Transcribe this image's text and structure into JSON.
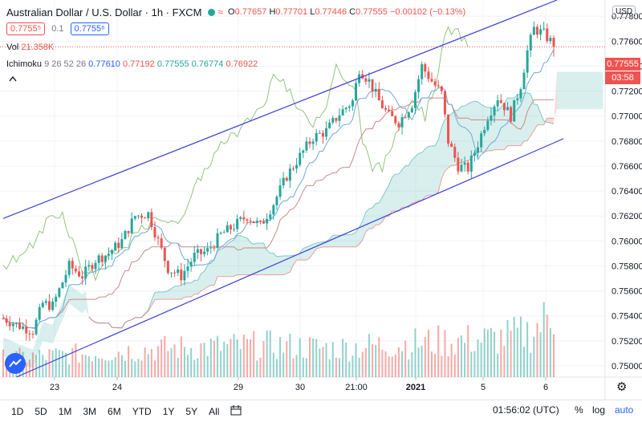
{
  "header": {
    "title": "Australian Dollar / U.S. Dollar · 1h · FXCM",
    "wave_icon": "≈",
    "open_label": "O",
    "open": "0.77657",
    "high_label": "H",
    "high": "0.77701",
    "low_label": "L",
    "low": "0.77446",
    "close_label": "C",
    "close": "0.77555",
    "change": "−0.00102 (−0.13%)"
  },
  "trade": {
    "sell": "0.7755⁵",
    "spread": "0.1",
    "buy": "0.7755⁶"
  },
  "volume_legend": {
    "name": "Vol",
    "value": "21.358K"
  },
  "ichimoku_legend": {
    "name": "Ichimoku",
    "params": "9 26 52 26",
    "v1": "0.77610",
    "v2": "0.77192",
    "v3": "0.77555",
    "v4": "0.76774",
    "v5": "0.76922"
  },
  "currency": "USD",
  "price_label": {
    "value": "0.77555",
    "countdown": "03:58"
  },
  "toolbar": {
    "timeframes": [
      "1D",
      "5D",
      "1M",
      "3M",
      "6M",
      "YTD",
      "1Y",
      "5Y",
      "All"
    ],
    "clock": "01:56:02 (UTC)",
    "percent": "%",
    "log": "log",
    "auto": "auto"
  },
  "colors": {
    "up": "#26a69a",
    "down": "#ef5350",
    "channel": "#3f3fd6",
    "kijun": "#c98a8a",
    "tenkan": "#6fa8dc",
    "chikou": "#93c47d"
  },
  "chart_data": {
    "type": "candlestick",
    "symbol": "AUDUSD",
    "interval": "1h",
    "y_axis": {
      "side": "right",
      "ticks": [
        "0.77800",
        "0.77600",
        "0.77400",
        "0.77200",
        "0.77000",
        "0.76800",
        "0.76600",
        "0.76400",
        "0.76200",
        "0.76000",
        "0.75800",
        "0.75600",
        "0.75400",
        "0.75200",
        "0.75000"
      ],
      "range": [
        0.7491,
        0.7793
      ]
    },
    "x_axis": {
      "labels": [
        "23",
        "24",
        "29",
        "30",
        "21:00",
        "2021",
        "5",
        "6"
      ],
      "label_x": [
        68,
        146,
        297,
        374,
        444,
        518,
        602,
        680
      ]
    },
    "anchors": [
      [
        0,
        0.7538
      ],
      [
        5,
        0.7532
      ],
      [
        9,
        0.7528
      ],
      [
        12,
        0.755
      ],
      [
        15,
        0.7548
      ],
      [
        20,
        0.758
      ],
      [
        24,
        0.7572
      ],
      [
        28,
        0.7585
      ],
      [
        32,
        0.759
      ],
      [
        36,
        0.76
      ],
      [
        40,
        0.762
      ],
      [
        44,
        0.7622
      ],
      [
        47,
        0.76
      ],
      [
        50,
        0.7578
      ],
      [
        54,
        0.7572
      ],
      [
        58,
        0.7588
      ],
      [
        62,
        0.7592
      ],
      [
        66,
        0.7605
      ],
      [
        70,
        0.7612
      ],
      [
        74,
        0.762
      ],
      [
        78,
        0.7612
      ],
      [
        82,
        0.763
      ],
      [
        86,
        0.7652
      ],
      [
        90,
        0.7668
      ],
      [
        94,
        0.7683
      ],
      [
        98,
        0.7688
      ],
      [
        102,
        0.7702
      ],
      [
        106,
        0.7712
      ],
      [
        108,
        0.7738
      ],
      [
        111,
        0.7728
      ],
      [
        114,
        0.7712
      ],
      [
        117,
        0.77
      ],
      [
        120,
        0.7695
      ],
      [
        124,
        0.771
      ],
      [
        127,
        0.774
      ],
      [
        130,
        0.7728
      ],
      [
        133,
        0.7718
      ],
      [
        135,
        0.768
      ],
      [
        138,
        0.766
      ],
      [
        141,
        0.7658
      ],
      [
        144,
        0.7678
      ],
      [
        147,
        0.77
      ],
      [
        150,
        0.7715
      ],
      [
        152,
        0.7708
      ],
      [
        154,
        0.77
      ],
      [
        157,
        0.7725
      ],
      [
        159,
        0.7752
      ],
      [
        161,
        0.777
      ],
      [
        164,
        0.7766
      ],
      [
        166,
        0.776
      ],
      [
        167,
        0.77555
      ]
    ],
    "volume_peaks": [
      [
        0,
        0.3
      ],
      [
        20,
        0.35
      ],
      [
        50,
        0.45
      ],
      [
        80,
        0.5
      ],
      [
        100,
        0.45
      ],
      [
        130,
        0.55
      ],
      [
        150,
        0.6
      ],
      [
        160,
        0.7
      ],
      [
        167,
        1.0
      ]
    ],
    "channel": {
      "upper": [
        [
          0,
          0.7618
        ],
        [
          168,
          0.7793
        ]
      ],
      "lower": [
        [
          4,
          0.7491
        ],
        [
          170,
          0.7682
        ]
      ]
    },
    "last_price": 0.77555
  }
}
